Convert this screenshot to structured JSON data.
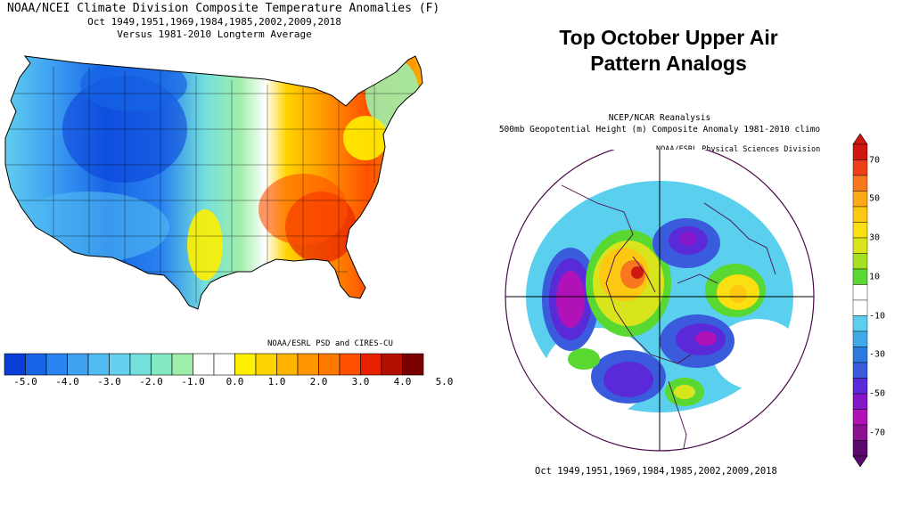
{
  "left_panel": {
    "title_line1": "NOAA/NCEI Climate Division Composite Temperature Anomalies (F)",
    "title_line2": "Oct  1949,1951,1969,1984,1985,2002,2009,2018",
    "title_line3": "Versus 1981-2010 Longterm Average",
    "credit": "NOAA/ESRL PSD and CIRES-CU",
    "colorbar": {
      "colors": [
        "#0a3ed8",
        "#1764e6",
        "#2a84f0",
        "#3ea1f2",
        "#52bcf2",
        "#64d2ee",
        "#74e0dc",
        "#84e8c2",
        "#9eeeaa",
        "#ffffff",
        "#ffffff",
        "#fef000",
        "#ffd400",
        "#ffb400",
        "#ff9600",
        "#ff7800",
        "#ff5000",
        "#e82000",
        "#b40e00",
        "#7a0000"
      ],
      "tick_labels": [
        "-5.0",
        "-4.0",
        "-3.0",
        "-2.0",
        "-1.0",
        "0.0",
        "1.0",
        "2.0",
        "3.0",
        "4.0",
        "5.0"
      ]
    }
  },
  "right_panel": {
    "heading_line1": "Top October Upper Air",
    "heading_line2": "Pattern Analogs",
    "subtitle_line1": "NCEP/NCAR Reanalysis",
    "subtitle_line2": "500mb Geopotential Height (m) Composite Anomaly 1981-2010 climo",
    "credit": "NOAA/ESRL Physical Sciences Division",
    "footer": "Oct 1949,1951,1969,1984,1985,2002,2009,2018",
    "colorbar": {
      "colors": [
        "#5a0a6e",
        "#8a1290",
        "#b012b8",
        "#8418c8",
        "#5a2ad8",
        "#3a5cdc",
        "#2a7ae0",
        "#3eaae8",
        "#5ad0ee",
        "#ffffff",
        "#ffffff",
        "#58d830",
        "#a6e022",
        "#d8e41c",
        "#fae012",
        "#fcc812",
        "#fca818",
        "#f87820",
        "#ec4018",
        "#d01810"
      ],
      "tick_labels": [
        "70",
        "50",
        "30",
        "10",
        "-10",
        "-30",
        "-50",
        "-70"
      ]
    }
  }
}
